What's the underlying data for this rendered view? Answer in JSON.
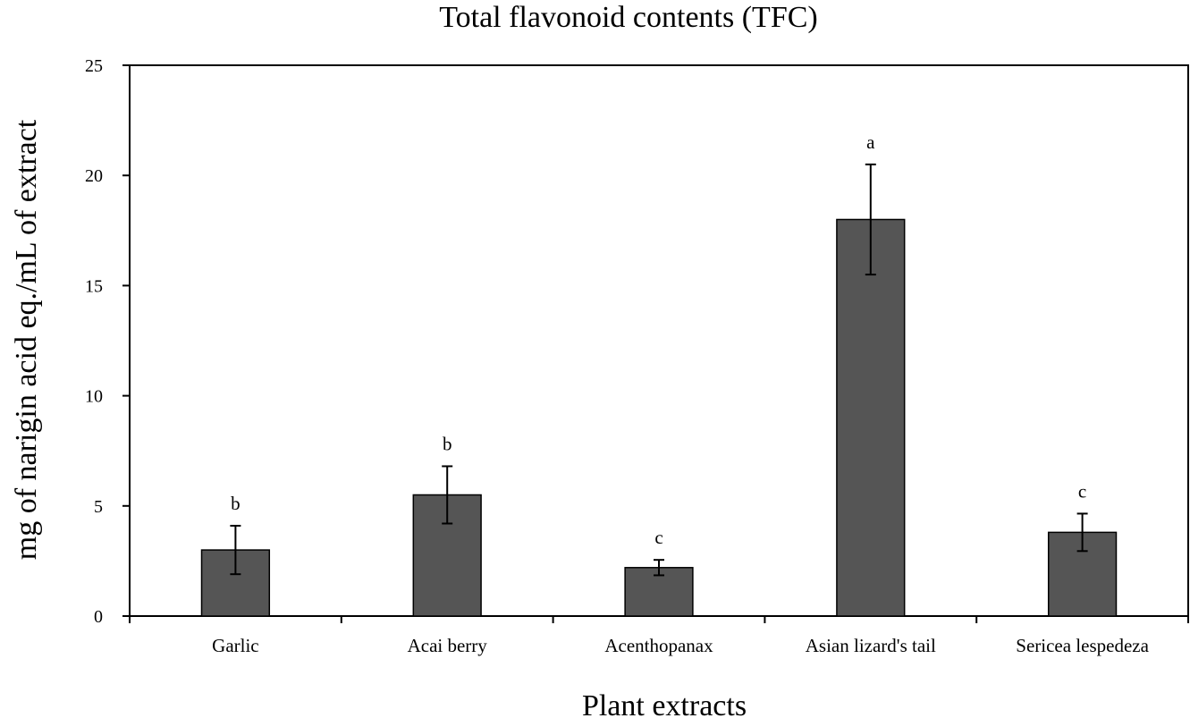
{
  "chart_data": {
    "type": "bar",
    "title": "Total flavonoid contents (TFC)",
    "xlabel": "Plant extracts",
    "ylabel": "mg of narigin acid eq./mL of extract",
    "ylim": [
      0,
      25
    ],
    "yticks": [
      "0",
      "5",
      "10",
      "15",
      "20",
      "25"
    ],
    "categories": [
      "Garlic",
      "Acai berry",
      "Acenthopanax",
      "Asian lizard's tail",
      "Sericea lespedeza"
    ],
    "values": [
      3.0,
      5.5,
      2.2,
      18.0,
      3.8
    ],
    "errors": [
      1.1,
      1.3,
      0.35,
      2.5,
      0.85
    ],
    "significance": [
      "b",
      "b",
      "c",
      "a",
      "c"
    ],
    "grid": false,
    "bar_color": "#555555"
  }
}
